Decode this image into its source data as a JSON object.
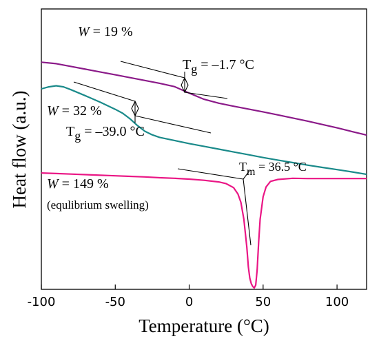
{
  "chart_data": {
    "type": "line",
    "title": "",
    "xlabel": "Temperature (°C)",
    "ylabel": "Heat flow (a.u.)",
    "xlim": [
      -100,
      120
    ],
    "xticks": [
      -100,
      -50,
      0,
      50,
      100
    ],
    "xtick_labels": [
      "-100",
      "-50",
      "0",
      "50",
      "100"
    ],
    "y_ticks_shown": false,
    "grid": false,
    "legend": "none",
    "series": [
      {
        "name": "W = 19 %",
        "color": "#8b1a89",
        "x": [
          -100,
          -90,
          -80,
          -70,
          -60,
          -50,
          -40,
          -30,
          -20,
          -10,
          0,
          10,
          20,
          30,
          40,
          50,
          60,
          70,
          80,
          90,
          100,
          110,
          120
        ],
        "y": [
          0.81,
          0.805,
          0.795,
          0.785,
          0.775,
          0.765,
          0.755,
          0.745,
          0.735,
          0.723,
          0.7,
          0.678,
          0.664,
          0.653,
          0.643,
          0.633,
          0.622,
          0.611,
          0.6,
          0.588,
          0.576,
          0.563,
          0.55
        ]
      },
      {
        "name": "W = 32 %",
        "color": "#1a8a8a",
        "x": [
          -100,
          -95,
          -90,
          -85,
          -80,
          -70,
          -60,
          -50,
          -45,
          -40,
          -35,
          -30,
          -25,
          -20,
          -10,
          0,
          10,
          20,
          30,
          40,
          50,
          60,
          70,
          80,
          90,
          100,
          110,
          120
        ],
        "y": [
          0.715,
          0.722,
          0.726,
          0.722,
          0.712,
          0.69,
          0.667,
          0.642,
          0.628,
          0.608,
          0.584,
          0.564,
          0.551,
          0.542,
          0.531,
          0.52,
          0.51,
          0.5,
          0.49,
          0.48,
          0.47,
          0.461,
          0.452,
          0.443,
          0.435,
          0.427,
          0.419,
          0.41
        ]
      },
      {
        "name": "W = 149 %",
        "color": "#ea1685",
        "x": [
          -100,
          -90,
          -80,
          -70,
          -60,
          -50,
          -40,
          -30,
          -20,
          -10,
          0,
          10,
          20,
          25,
          30,
          33,
          35,
          37,
          39,
          40,
          41,
          42,
          43,
          44,
          45,
          46,
          47,
          48,
          50,
          52,
          55,
          60,
          70,
          80,
          90,
          100,
          110,
          120
        ],
        "y": [
          0.415,
          0.413,
          0.411,
          0.409,
          0.407,
          0.405,
          0.403,
          0.401,
          0.398,
          0.396,
          0.393,
          0.389,
          0.383,
          0.377,
          0.363,
          0.34,
          0.31,
          0.25,
          0.15,
          0.08,
          0.04,
          0.02,
          0.01,
          0.005,
          0.015,
          0.07,
          0.17,
          0.25,
          0.33,
          0.365,
          0.385,
          0.392,
          0.396,
          0.395,
          0.395,
          0.395,
          0.395,
          0.395
        ]
      }
    ],
    "annotations": {
      "w19": {
        "prefix": "W",
        "rest": " = 19 %"
      },
      "w32": {
        "prefix": "W",
        "rest": " = 32 %"
      },
      "w149": {
        "prefix": "W",
        "rest": " = 149 %"
      },
      "w149_note": "(equlibrium swelling)",
      "tg19": {
        "base": "T",
        "sub": "g",
        "value": " = –1.7 °C"
      },
      "tg32": {
        "base": "T",
        "sub": "g",
        "value": " = –39.0 °C"
      },
      "tm149": {
        "base": "T",
        "sub": "m",
        "value": " = 36.5 °C"
      }
    }
  }
}
